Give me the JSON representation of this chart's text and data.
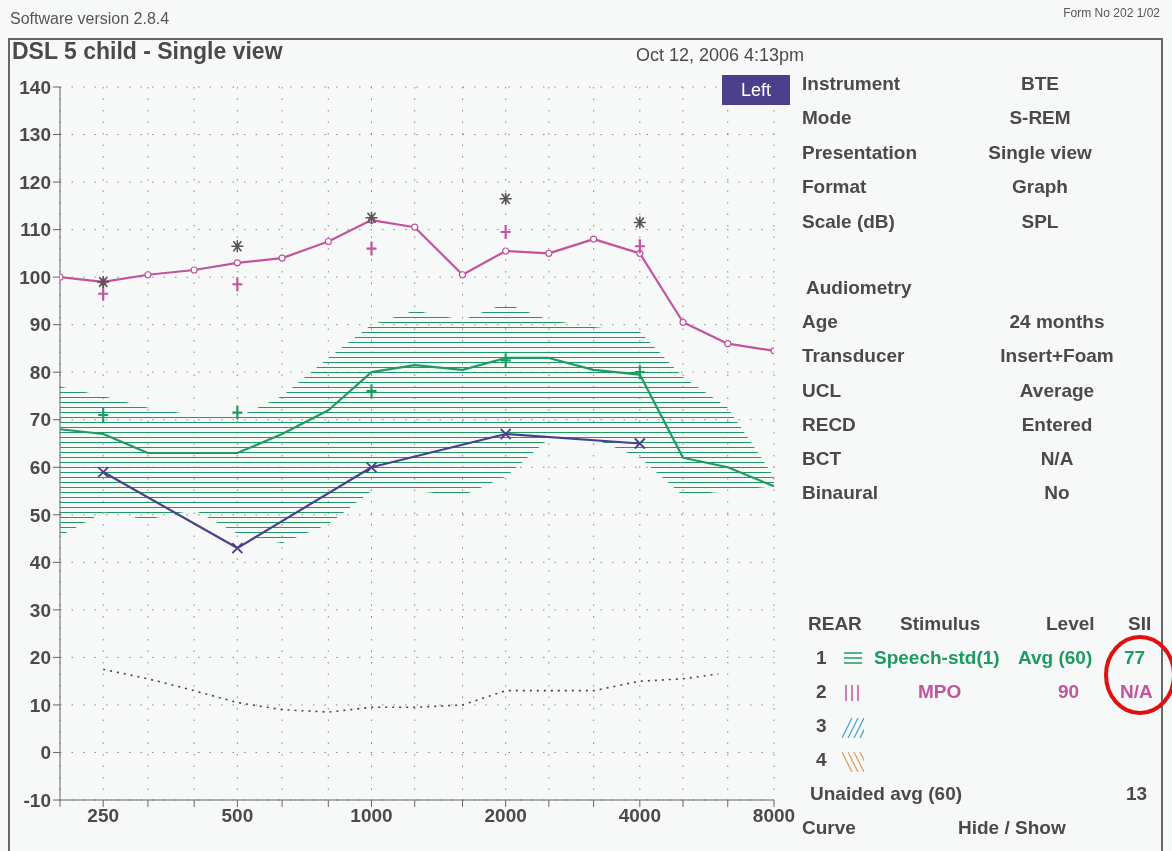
{
  "chart_data": {
    "type": "line",
    "title": "DSL 5 child - Single view",
    "subtitle": "Oct 12, 2006 4:13pm",
    "xlim": [
      200,
      8000
    ],
    "xticks": [
      {
        "value": 200,
        "label": null
      },
      250,
      {
        "value": 315,
        "label": null
      },
      {
        "value": 400,
        "label": null
      },
      500,
      {
        "value": 630,
        "label": null
      },
      {
        "value": 800,
        "label": null
      },
      1000,
      {
        "value": 1250,
        "label": null
      },
      {
        "value": 1600,
        "label": null
      },
      2000,
      {
        "value": 2500,
        "label": null
      },
      {
        "value": 3150,
        "label": null
      },
      4000,
      {
        "value": 5000,
        "label": null
      },
      {
        "value": 6300,
        "label": null
      },
      8000
    ],
    "log": "x",
    "ylim": [
      -10,
      140
    ],
    "yticks": [
      -10,
      0,
      10,
      20,
      30,
      40,
      50,
      60,
      70,
      80,
      90,
      100,
      110,
      120,
      130,
      140
    ],
    "grid": true,
    "legend": "right",
    "series": [
      {
        "name": "Speech-std(1)",
        "color": "#1f9a62",
        "marker": "none",
        "x": [
          200,
          250,
          315,
          400,
          500,
          630,
          800,
          1000,
          1250,
          1600,
          2000,
          2500,
          3150,
          4000,
          5000,
          6300,
          8000
        ],
        "values": [
          68,
          67,
          63,
          63,
          63,
          67,
          72,
          80,
          81.5,
          80.5,
          83,
          83,
          80.5,
          79.5,
          62,
          60,
          56
        ],
        "lower": [
          45.5,
          50.5,
          49,
          51,
          46,
          44,
          48,
          55,
          55,
          54,
          58,
          66,
          66,
          62,
          54,
          55,
          56
        ],
        "upper": [
          77,
          75,
          72.5,
          71,
          70.5,
          75,
          83,
          90,
          93,
          91,
          94.5,
          91,
          89.5,
          88.5,
          79,
          72.5,
          58
        ]
      },
      {
        "name": "MPO",
        "color": "#c2549e",
        "marker": "circle",
        "x": [
          200,
          250,
          315,
          400,
          500,
          630,
          800,
          1000,
          1250,
          1600,
          2000,
          2500,
          3150,
          4000,
          5000,
          6300,
          8000
        ],
        "values": [
          100,
          99,
          100.5,
          101.5,
          103,
          104,
          107.5,
          112,
          110.5,
          100.5,
          105.5,
          105,
          108,
          105,
          90.5,
          86,
          84.5
        ]
      },
      {
        "type": "scatter",
        "color": "#c2549e",
        "marker": "cross",
        "x": [
          250,
          500,
          1000,
          2000,
          4000
        ],
        "values": [
          96.5,
          98.5,
          106,
          109.5,
          106.5
        ]
      },
      {
        "type": "scatter",
        "color": "#555555",
        "marker": "cross",
        "x": [
          250,
          500,
          1000,
          2000,
          4000
        ],
        "values": [
          99,
          106.5,
          112.5,
          116.5,
          111.5
        ]
      },
      {
        "type": "scatter",
        "color": "#1f9a62",
        "marker": "cross",
        "x": [
          250,
          500,
          1000,
          2000,
          4000
        ],
        "values": [
          71,
          71.5,
          76,
          82.5,
          80
        ]
      },
      {
        "color": "#4b3f8c",
        "marker": "cross",
        "x": [
          250,
          500,
          1000,
          2000,
          4000
        ],
        "values": [
          59,
          43,
          60,
          67,
          65
        ]
      },
      {
        "color": "#444444",
        "marker": "none",
        "line_style": "dotted",
        "x": [
          250,
          315,
          400,
          500,
          630,
          800,
          1000,
          1250,
          1600,
          2000,
          2500,
          3150,
          4000,
          5000,
          6000
        ],
        "values": [
          17.5,
          15.5,
          13,
          10.5,
          9,
          8.5,
          9.5,
          9.5,
          10,
          13,
          13,
          13,
          15,
          15.5,
          16.5
        ]
      }
    ],
    "annotations": [
      "Software version 2.8.4",
      "Form No 202 1/02",
      "Left",
      "Instrument",
      "BTE",
      "Mode",
      "S-REM",
      "Presentation",
      "Single view",
      "Format",
      "Graph",
      "Scale (dB)",
      "SPL",
      "Audiometry",
      "Age",
      "24 months",
      "Transducer",
      "Insert+Foam",
      "UCL",
      "Average",
      "RECD",
      "Entered",
      "BCT",
      "N/A",
      "Binaural",
      "No",
      "REAR",
      "Stimulus",
      "Level",
      "SII",
      "1",
      "Avg (60)",
      "77",
      "2",
      "90",
      "N/A",
      "3",
      "4",
      "Unaided avg (60)",
      "13",
      "Curve",
      "Hide / Show"
    ]
  }
}
